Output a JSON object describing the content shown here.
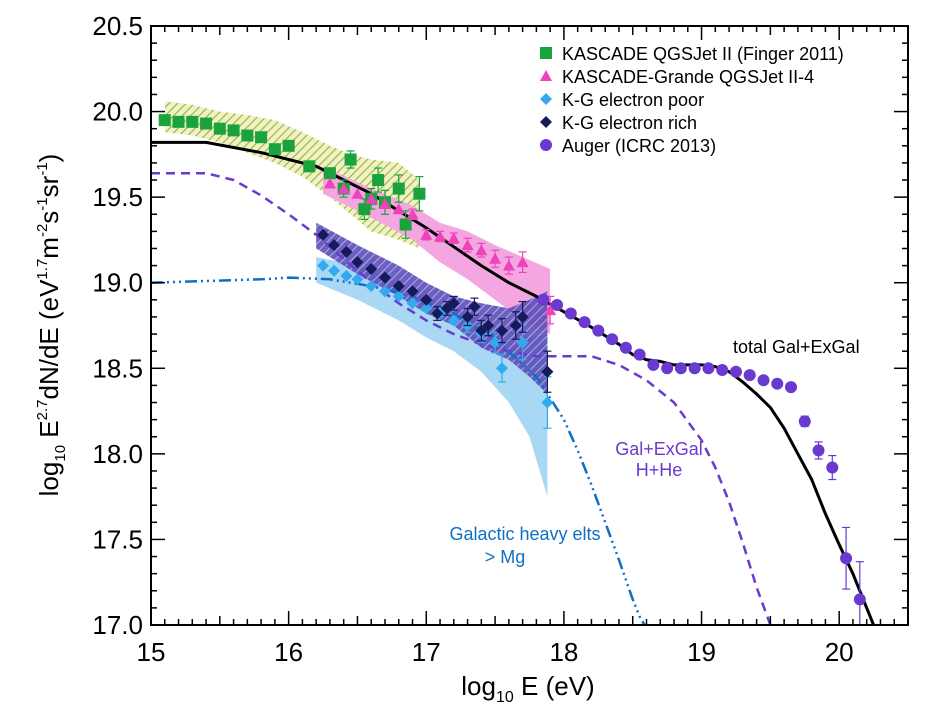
{
  "chart_data": {
    "type": "scatter",
    "xlabel": {
      "base": "log",
      "sub": "10",
      "rest": " E (eV)"
    },
    "ylabel": {
      "p1": "log",
      "p1sub": "10",
      "p2": " E",
      "p2sup": "2.7",
      "p3": "dN/dE (eV",
      "p4sup": "1.7",
      "p5": "m",
      "p6sup": "-2",
      "p7": "s",
      "p8sup": "-1",
      "p9": "sr",
      "p10sup": "-1",
      "p11": ")"
    },
    "xlim": [
      15,
      20.5
    ],
    "ylim": [
      17.0,
      20.5
    ],
    "xticks": [
      "15",
      "16",
      "17",
      "18",
      "19",
      "20"
    ],
    "yticks": [
      "17.0",
      "17.5",
      "18.0",
      "18.5",
      "19.0",
      "19.5",
      "20.0",
      "20.5"
    ],
    "legend": {
      "position": "top-right",
      "entries": [
        {
          "label": "KASCADE QGSJet II (Finger 2011)",
          "marker": "square",
          "color": "#1aa33c"
        },
        {
          "label": "KASCADE-Grande QGSJet II-4",
          "marker": "triangle",
          "color": "#ee44bb"
        },
        {
          "label": "K-G electron poor",
          "marker": "diamond",
          "color": "#33aaee"
        },
        {
          "label": "K-G electron rich",
          "marker": "diamond",
          "color": "#141a5a"
        },
        {
          "label": "Auger (ICRC 2013)",
          "marker": "circle",
          "color": "#6a3ad0"
        }
      ]
    },
    "annotations": {
      "total": "total Gal+ExGal",
      "hhe_line1": "Gal+ExGal",
      "hhe_line2": "H+He",
      "heavy_line1": "Galactic heavy elts",
      "heavy_line2": "> Mg"
    },
    "bands": [
      {
        "name": "KASCADE systematic",
        "fill": "#b5c24a",
        "x": [
          15.1,
          15.3,
          15.5,
          15.7,
          15.9,
          16.1,
          16.3,
          16.45,
          16.6,
          16.8,
          16.95,
          16.95,
          16.8,
          16.6,
          16.45,
          16.3,
          16.1,
          15.9,
          15.7,
          15.5,
          15.3,
          15.1
        ],
        "y": [
          20.06,
          20.04,
          20.0,
          19.98,
          19.95,
          19.88,
          19.8,
          19.75,
          19.72,
          19.7,
          19.6,
          19.2,
          19.25,
          19.3,
          19.4,
          19.5,
          19.62,
          19.7,
          19.76,
          19.82,
          19.86,
          19.88
        ]
      },
      {
        "name": "KASCADE-Grande systematic",
        "fill": "#f4a6e0",
        "x": [
          16.25,
          16.6,
          16.9,
          17.1,
          17.3,
          17.5,
          17.7,
          17.9,
          17.9,
          17.7,
          17.5,
          17.3,
          17.1,
          16.9,
          16.6,
          16.25
        ],
        "y": [
          19.68,
          19.55,
          19.45,
          19.35,
          19.3,
          19.22,
          19.15,
          19.08,
          18.7,
          18.78,
          18.9,
          19.02,
          19.12,
          19.25,
          19.38,
          19.52
        ]
      },
      {
        "name": "K-G electron poor systematic",
        "fill": "#a8d8f4",
        "x": [
          16.2,
          16.5,
          16.8,
          17.0,
          17.2,
          17.4,
          17.6,
          17.75,
          17.88,
          17.88,
          17.75,
          17.6,
          17.4,
          17.2,
          17.0,
          16.8,
          16.5,
          16.2
        ],
        "y": [
          19.15,
          19.1,
          19.0,
          18.92,
          18.85,
          18.78,
          18.72,
          18.68,
          18.7,
          17.75,
          18.1,
          18.3,
          18.48,
          18.6,
          18.68,
          18.78,
          18.9,
          19.0
        ]
      },
      {
        "name": "K-G electron rich systematic",
        "fill": "#7266c8",
        "x": [
          16.2,
          16.5,
          16.8,
          17.0,
          17.2,
          17.4,
          17.6,
          17.75,
          17.88,
          17.88,
          17.75,
          17.6,
          17.4,
          17.2,
          17.0,
          16.8,
          16.5,
          16.2
        ],
        "y": [
          19.35,
          19.22,
          19.1,
          19.0,
          18.92,
          18.88,
          18.85,
          18.9,
          18.95,
          18.35,
          18.45,
          18.55,
          18.62,
          18.75,
          18.82,
          18.92,
          19.05,
          19.2
        ]
      }
    ],
    "series": [
      {
        "name": "KASCADE QGSJet II (Finger 2011)",
        "marker": "square",
        "color": "#1aa33c",
        "points": [
          [
            15.1,
            19.95
          ],
          [
            15.2,
            19.94
          ],
          [
            15.3,
            19.94
          ],
          [
            15.4,
            19.93
          ],
          [
            15.5,
            19.9
          ],
          [
            15.6,
            19.89
          ],
          [
            15.7,
            19.86
          ],
          [
            15.8,
            19.85
          ],
          [
            15.9,
            19.78
          ],
          [
            16.0,
            19.8
          ],
          [
            16.15,
            19.68
          ],
          [
            16.3,
            19.64
          ],
          [
            16.4,
            19.55
          ],
          [
            16.45,
            19.72
          ],
          [
            16.55,
            19.43
          ],
          [
            16.6,
            19.49
          ],
          [
            16.65,
            19.6
          ],
          [
            16.7,
            19.47
          ],
          [
            16.8,
            19.55
          ],
          [
            16.85,
            19.34
          ],
          [
            16.95,
            19.52
          ]
        ],
        "errors": [
          0,
          0,
          0,
          0,
          0,
          0,
          0,
          0,
          0,
          0,
          0,
          0,
          0.05,
          0.05,
          0.06,
          0.06,
          0.07,
          0.07,
          0.08,
          0.08,
          0.1
        ]
      },
      {
        "name": "KASCADE-Grande QGSJet II-4",
        "marker": "triangle",
        "color": "#ee44bb",
        "points": [
          [
            16.3,
            19.58
          ],
          [
            16.4,
            19.55
          ],
          [
            16.5,
            19.52
          ],
          [
            16.6,
            19.49
          ],
          [
            16.7,
            19.46
          ],
          [
            16.8,
            19.43
          ],
          [
            16.9,
            19.4
          ],
          [
            17.0,
            19.28
          ],
          [
            17.1,
            19.27
          ],
          [
            17.2,
            19.26
          ],
          [
            17.3,
            19.22
          ],
          [
            17.4,
            19.19
          ],
          [
            17.5,
            19.14
          ],
          [
            17.6,
            19.1
          ],
          [
            17.7,
            19.12
          ],
          [
            17.9,
            18.84
          ]
        ],
        "errors": [
          0,
          0,
          0,
          0,
          0,
          0,
          0.03,
          0.03,
          0.03,
          0.03,
          0.04,
          0.04,
          0.05,
          0.05,
          0.06,
          0.08
        ]
      },
      {
        "name": "K-G electron poor",
        "marker": "diamond",
        "color": "#33aaee",
        "points": [
          [
            16.25,
            19.1
          ],
          [
            16.33,
            19.07
          ],
          [
            16.42,
            19.04
          ],
          [
            16.5,
            19.02
          ],
          [
            16.6,
            18.98
          ],
          [
            16.7,
            18.95
          ],
          [
            16.8,
            18.92
          ],
          [
            16.9,
            18.88
          ],
          [
            17.0,
            18.85
          ],
          [
            17.1,
            18.82
          ],
          [
            17.2,
            18.78
          ],
          [
            17.3,
            18.75
          ],
          [
            17.4,
            18.7
          ],
          [
            17.5,
            18.65
          ],
          [
            17.55,
            18.5
          ],
          [
            17.7,
            18.65
          ],
          [
            17.88,
            18.3
          ]
        ],
        "errors": [
          0,
          0,
          0,
          0,
          0,
          0,
          0,
          0,
          0,
          0,
          0,
          0.04,
          0.05,
          0.06,
          0.08,
          0.1,
          0.15
        ]
      },
      {
        "name": "K-G electron rich",
        "marker": "diamond",
        "color": "#141a5a",
        "points": [
          [
            16.25,
            19.28
          ],
          [
            16.33,
            19.22
          ],
          [
            16.42,
            19.18
          ],
          [
            16.5,
            19.12
          ],
          [
            16.6,
            19.08
          ],
          [
            16.7,
            19.03
          ],
          [
            16.8,
            18.98
          ],
          [
            16.9,
            18.95
          ],
          [
            17.0,
            18.9
          ],
          [
            17.08,
            18.82
          ],
          [
            17.15,
            18.85
          ],
          [
            17.2,
            18.88
          ],
          [
            17.3,
            18.8
          ],
          [
            17.35,
            18.86
          ],
          [
            17.4,
            18.72
          ],
          [
            17.45,
            18.75
          ],
          [
            17.55,
            18.72
          ],
          [
            17.65,
            18.75
          ],
          [
            17.7,
            18.8
          ],
          [
            17.88,
            18.48
          ]
        ],
        "errors": [
          0,
          0,
          0,
          0,
          0,
          0,
          0,
          0,
          0,
          0.04,
          0.04,
          0.04,
          0.05,
          0.05,
          0.06,
          0.06,
          0.07,
          0.08,
          0.09,
          0.12
        ]
      },
      {
        "name": "Auger (ICRC 2013)",
        "marker": "circle",
        "color": "#6a3ad0",
        "points": [
          [
            17.85,
            18.9
          ],
          [
            17.95,
            18.87
          ],
          [
            18.05,
            18.82
          ],
          [
            18.15,
            18.77
          ],
          [
            18.25,
            18.72
          ],
          [
            18.35,
            18.67
          ],
          [
            18.45,
            18.62
          ],
          [
            18.55,
            18.58
          ],
          [
            18.65,
            18.52
          ],
          [
            18.75,
            18.5
          ],
          [
            18.85,
            18.5
          ],
          [
            18.95,
            18.5
          ],
          [
            19.05,
            18.5
          ],
          [
            19.15,
            18.49
          ],
          [
            19.25,
            18.48
          ],
          [
            19.35,
            18.46
          ],
          [
            19.45,
            18.43
          ],
          [
            19.55,
            18.41
          ],
          [
            19.65,
            18.39
          ],
          [
            19.75,
            18.19
          ],
          [
            19.85,
            18.02
          ],
          [
            19.95,
            17.92
          ],
          [
            20.05,
            17.39
          ],
          [
            20.15,
            17.15
          ]
        ],
        "errors": [
          0,
          0,
          0,
          0,
          0,
          0,
          0,
          0,
          0,
          0,
          0,
          0,
          0,
          0,
          0,
          0,
          0,
          0,
          0,
          0.03,
          0.05,
          0.07,
          0.18,
          0.22
        ]
      }
    ],
    "lines": [
      {
        "name": "total Gal+ExGal",
        "color": "#000000",
        "dash": "solid",
        "width": 3,
        "x": [
          15.0,
          15.4,
          15.8,
          16.0,
          16.2,
          16.4,
          16.6,
          16.8,
          17.0,
          17.2,
          17.4,
          17.6,
          17.8,
          18.0,
          18.2,
          18.4,
          18.5,
          18.6,
          18.7,
          18.8,
          18.9,
          19.0,
          19.1,
          19.2,
          19.3,
          19.4,
          19.5,
          19.6,
          19.7,
          19.8,
          19.9,
          20.0,
          20.1,
          20.2,
          20.25
        ],
        "y": [
          19.82,
          19.82,
          19.76,
          19.72,
          19.68,
          19.6,
          19.52,
          19.42,
          19.32,
          19.21,
          19.1,
          19.0,
          18.92,
          18.83,
          18.74,
          18.64,
          18.58,
          18.55,
          18.54,
          18.52,
          18.52,
          18.52,
          18.51,
          18.48,
          18.42,
          18.35,
          18.27,
          18.15,
          18.0,
          17.85,
          17.65,
          17.47,
          17.3,
          17.1,
          17.0
        ]
      },
      {
        "name": "Gal+ExGal H+He",
        "color": "#6a3ad0",
        "dash": "9 6",
        "width": 2.5,
        "x": [
          15.0,
          15.4,
          15.6,
          15.8,
          16.0,
          16.2,
          16.4,
          16.6,
          16.8,
          17.0,
          17.2,
          17.4,
          17.6,
          17.8,
          18.0,
          18.2,
          18.4,
          18.6,
          18.8,
          19.0,
          19.1,
          19.2,
          19.3,
          19.4,
          19.5,
          19.55
        ],
        "y": [
          19.64,
          19.64,
          19.6,
          19.51,
          19.4,
          19.28,
          19.14,
          19.0,
          18.88,
          18.78,
          18.7,
          18.64,
          18.6,
          18.57,
          18.57,
          18.57,
          18.52,
          18.43,
          18.3,
          18.08,
          17.92,
          17.72,
          17.48,
          17.22,
          17.0,
          16.9
        ]
      },
      {
        "name": "Galactic heavy elts > Mg",
        "color": "#0f6fc6",
        "dash": "12 4 2 4 2 4 2 4",
        "width": 2.5,
        "x": [
          15.0,
          15.4,
          15.8,
          16.0,
          16.3,
          16.6,
          16.9,
          17.2,
          17.5,
          17.8,
          18.0,
          18.1,
          18.2,
          18.3,
          18.4,
          18.5,
          18.55,
          18.6
        ],
        "y": [
          19.0,
          19.01,
          19.02,
          19.03,
          19.02,
          18.98,
          18.92,
          18.82,
          18.67,
          18.45,
          18.2,
          18.02,
          17.82,
          17.6,
          17.38,
          17.15,
          17.05,
          16.98
        ]
      }
    ]
  }
}
